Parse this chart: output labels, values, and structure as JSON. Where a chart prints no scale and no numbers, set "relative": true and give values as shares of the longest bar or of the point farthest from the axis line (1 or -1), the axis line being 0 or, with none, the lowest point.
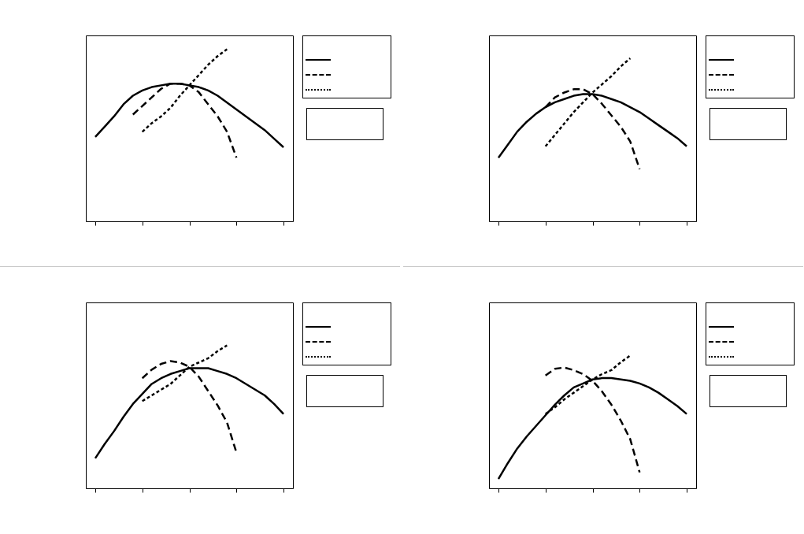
{
  "chart_data": [
    {
      "type": "line",
      "relative": true,
      "categories": [
        null,
        null,
        null,
        null,
        null,
        null,
        null,
        null,
        null,
        null,
        null,
        null,
        null,
        null,
        null,
        null,
        null,
        null,
        null,
        null,
        null
      ],
      "series": [
        {
          "color": "#000000",
          "line_style": "solid",
          "values": [
            0.49,
            0.55,
            0.61,
            0.68,
            0.73,
            0.76,
            0.78,
            0.79,
            0.8,
            0.8,
            0.79,
            0.78,
            0.76,
            0.73,
            0.69,
            0.65,
            0.61,
            0.57,
            0.53,
            0.48,
            0.43
          ]
        },
        {
          "color": "#000000",
          "line_style": "dashed",
          "values": [
            null,
            null,
            null,
            null,
            0.62,
            0.67,
            0.72,
            0.77,
            0.8,
            0.8,
            0.79,
            0.75,
            0.68,
            0.61,
            0.52,
            0.37,
            null,
            null,
            null,
            null,
            null
          ]
        },
        {
          "color": "#000000",
          "line_style": "dotted",
          "values": [
            null,
            null,
            null,
            null,
            null,
            0.52,
            0.57,
            0.61,
            0.66,
            0.73,
            0.79,
            0.85,
            0.91,
            0.96,
            1.0,
            null,
            null,
            null,
            null,
            null,
            null
          ]
        }
      ]
    },
    {
      "type": "line",
      "relative": true,
      "categories": [
        null,
        null,
        null,
        null,
        null,
        null,
        null,
        null,
        null,
        null,
        null,
        null,
        null,
        null,
        null,
        null,
        null,
        null,
        null,
        null,
        null
      ],
      "series": [
        {
          "color": "#000000",
          "line_style": "solid",
          "values": [
            0.39,
            0.47,
            0.55,
            0.61,
            0.66,
            0.7,
            0.73,
            0.75,
            0.77,
            0.78,
            0.78,
            0.77,
            0.75,
            0.73,
            0.7,
            0.67,
            0.63,
            0.59,
            0.55,
            0.51,
            0.46
          ]
        },
        {
          "color": "#000000",
          "line_style": "dashed",
          "values": [
            null,
            null,
            null,
            null,
            null,
            0.7,
            0.76,
            0.79,
            0.81,
            0.81,
            0.78,
            0.72,
            0.65,
            0.58,
            0.49,
            0.32,
            null,
            null,
            null,
            null,
            null
          ]
        },
        {
          "color": "#000000",
          "line_style": "dotted",
          "values": [
            null,
            null,
            null,
            null,
            null,
            0.46,
            0.53,
            0.6,
            0.67,
            0.73,
            0.79,
            0.84,
            0.89,
            0.95,
            1.0,
            null,
            null,
            null,
            null,
            null,
            null
          ]
        }
      ]
    },
    {
      "type": "line",
      "relative": true,
      "categories": [
        null,
        null,
        null,
        null,
        null,
        null,
        null,
        null,
        null,
        null,
        null,
        null,
        null,
        null,
        null,
        null,
        null,
        null,
        null,
        null,
        null
      ],
      "series": [
        {
          "color": "#000000",
          "line_style": "solid",
          "values": [
            0.21,
            0.31,
            0.4,
            0.5,
            0.59,
            0.66,
            0.73,
            0.77,
            0.8,
            0.82,
            0.84,
            0.84,
            0.84,
            0.82,
            0.8,
            0.77,
            0.73,
            0.69,
            0.65,
            0.59,
            0.52
          ]
        },
        {
          "color": "#000000",
          "line_style": "dashed",
          "values": [
            null,
            null,
            null,
            null,
            null,
            0.77,
            0.83,
            0.87,
            0.89,
            0.88,
            0.85,
            0.78,
            0.68,
            0.58,
            0.46,
            0.25,
            null,
            null,
            null,
            null,
            null
          ]
        },
        {
          "color": "#000000",
          "line_style": "dotted",
          "values": [
            null,
            null,
            null,
            null,
            null,
            0.61,
            0.65,
            0.69,
            0.73,
            0.79,
            0.85,
            0.88,
            0.91,
            0.96,
            1.0,
            null,
            null,
            null,
            null,
            null,
            null
          ]
        }
      ]
    },
    {
      "type": "line",
      "relative": true,
      "categories": [
        null,
        null,
        null,
        null,
        null,
        null,
        null,
        null,
        null,
        null,
        null,
        null,
        null,
        null,
        null,
        null,
        null,
        null,
        null,
        null,
        null
      ],
      "series": [
        {
          "color": "#000000",
          "line_style": "solid",
          "values": [
            0.07,
            0.19,
            0.3,
            0.39,
            0.47,
            0.55,
            0.63,
            0.7,
            0.76,
            0.79,
            0.82,
            0.83,
            0.83,
            0.82,
            0.81,
            0.79,
            0.76,
            0.72,
            0.67,
            0.62,
            0.56
          ]
        },
        {
          "color": "#000000",
          "line_style": "dashed",
          "values": [
            null,
            null,
            null,
            null,
            null,
            0.85,
            0.9,
            0.91,
            0.89,
            0.86,
            0.81,
            0.73,
            0.63,
            0.51,
            0.37,
            0.12,
            null,
            null,
            null,
            null,
            null
          ]
        },
        {
          "color": "#000000",
          "line_style": "dotted",
          "values": [
            null,
            null,
            null,
            null,
            null,
            0.56,
            0.61,
            0.67,
            0.72,
            0.77,
            0.82,
            0.86,
            0.89,
            0.95,
            1.0,
            null,
            null,
            null,
            null,
            null,
            null
          ]
        }
      ]
    }
  ]
}
